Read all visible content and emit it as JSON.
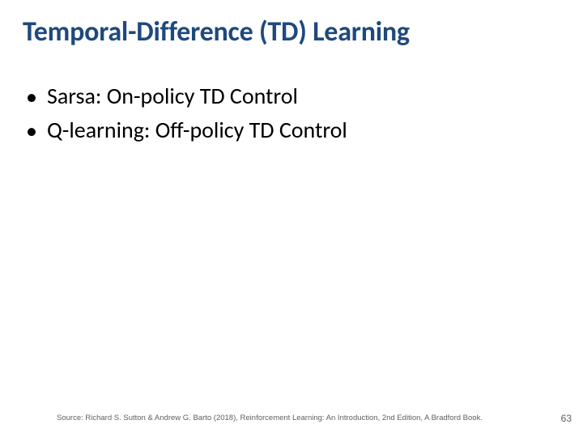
{
  "title": "Temporal-Difference (TD) Learning",
  "title_color": "#1f497d",
  "title_fontsize": 34,
  "title_fontweight": 700,
  "bullets": [
    {
      "marker": "•",
      "text": "Sarsa: On-policy TD Control"
    },
    {
      "marker": "•",
      "text": "Q-learning: Off-policy TD Control"
    }
  ],
  "bullet_fontsize": 28,
  "bullet_color": "#000000",
  "source_text": "Source: Richard S. Sutton & Andrew G. Barto (2018), Reinforcement Learning: An Introduction, 2nd Edition, A Bradford Book.",
  "source_fontsize": 9.5,
  "source_color": "#606060",
  "page_number": "63",
  "page_number_fontsize": 12,
  "page_number_color": "#606060",
  "background_color": "#ffffff",
  "slide_width": 720,
  "slide_height": 540
}
